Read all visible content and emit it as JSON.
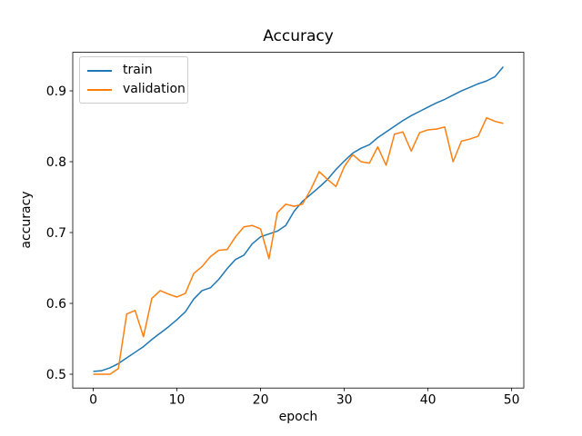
{
  "chart_data": {
    "type": "line",
    "title": "Accuracy",
    "xlabel": "epoch",
    "ylabel": "accuracy",
    "grid": false,
    "legend_position": "upper-left",
    "xlim": [
      -2.45,
      51.45
    ],
    "ylim": [
      0.4805,
      0.9544
    ],
    "xticks": [
      0,
      10,
      20,
      30,
      40,
      50
    ],
    "yticks": [
      0.5,
      0.6,
      0.7,
      0.8,
      0.9
    ],
    "x": [
      0,
      1,
      2,
      3,
      4,
      5,
      6,
      7,
      8,
      9,
      10,
      11,
      12,
      13,
      14,
      15,
      16,
      17,
      18,
      19,
      20,
      21,
      22,
      23,
      24,
      25,
      26,
      27,
      28,
      29,
      30,
      31,
      32,
      33,
      34,
      35,
      36,
      37,
      38,
      39,
      40,
      41,
      42,
      43,
      44,
      45,
      46,
      47,
      48,
      49
    ],
    "series": [
      {
        "name": "train",
        "color": "#1f77b4",
        "values": [
          0.504,
          0.505,
          0.509,
          0.515,
          0.523,
          0.531,
          0.539,
          0.549,
          0.558,
          0.567,
          0.577,
          0.588,
          0.606,
          0.618,
          0.622,
          0.634,
          0.649,
          0.662,
          0.668,
          0.684,
          0.694,
          0.698,
          0.702,
          0.71,
          0.73,
          0.744,
          0.754,
          0.764,
          0.775,
          0.789,
          0.801,
          0.812,
          0.819,
          0.824,
          0.834,
          0.842,
          0.85,
          0.858,
          0.865,
          0.871,
          0.877,
          0.883,
          0.888,
          0.894,
          0.9,
          0.905,
          0.91,
          0.914,
          0.92,
          0.934
        ]
      },
      {
        "name": "validation",
        "color": "#ff7f0e",
        "values": [
          0.5,
          0.5,
          0.5,
          0.508,
          0.585,
          0.59,
          0.553,
          0.607,
          0.618,
          0.613,
          0.609,
          0.614,
          0.642,
          0.652,
          0.666,
          0.675,
          0.676,
          0.694,
          0.708,
          0.71,
          0.705,
          0.663,
          0.728,
          0.74,
          0.737,
          0.74,
          0.761,
          0.786,
          0.775,
          0.765,
          0.793,
          0.81,
          0.8,
          0.798,
          0.821,
          0.795,
          0.839,
          0.842,
          0.815,
          0.841,
          0.845,
          0.846,
          0.849,
          0.8,
          0.829,
          0.832,
          0.836,
          0.862,
          0.857,
          0.854
        ]
      }
    ]
  },
  "style": {
    "spine_color": "#000000",
    "tick_color": "#000000",
    "text_color": "#000000",
    "legend_border_color": "#cccccc",
    "background": "#ffffff"
  }
}
